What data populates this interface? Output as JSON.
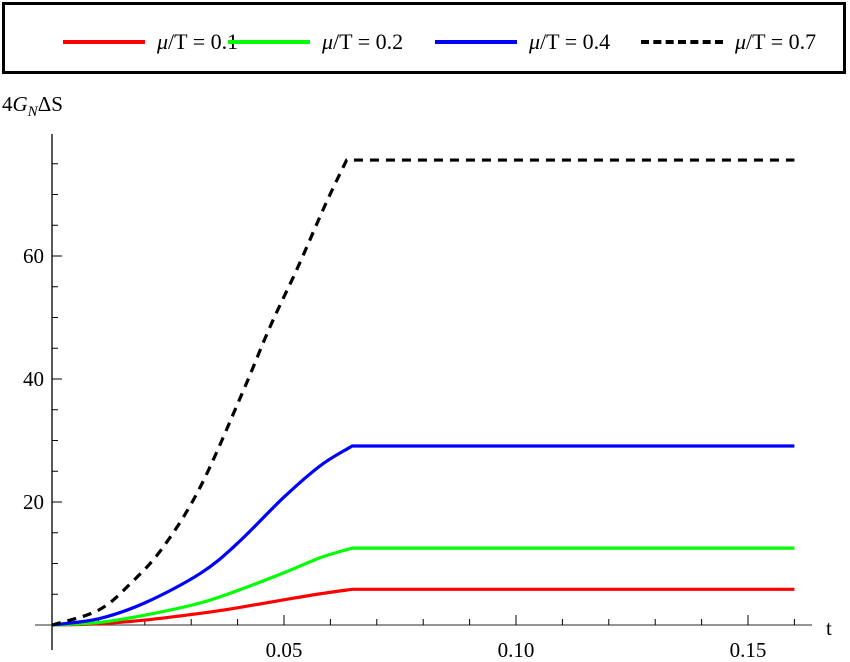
{
  "legend": {
    "items": [
      {
        "mu": "μ",
        "label": "/T = 0.1",
        "color": "#ff0000",
        "dash": "solid"
      },
      {
        "mu": "μ",
        "label": "/T = 0.2",
        "color": "#00ff00",
        "dash": "solid"
      },
      {
        "mu": "μ",
        "label": "/T = 0.4",
        "color": "#0000ff",
        "dash": "solid"
      },
      {
        "mu": "μ",
        "label": "/T = 0.7",
        "color": "#000000",
        "dash": "dashed"
      }
    ]
  },
  "axes": {
    "ylabel_main": "4",
    "ylabel_G": "G",
    "ylabel_sub": "N",
    "ylabel_tail": "ΔS",
    "xlabel": "t",
    "xticks": [
      "0.05",
      "0.10",
      "0.15"
    ],
    "yticks": [
      "20",
      "40",
      "60"
    ]
  },
  "chart_data": {
    "type": "line",
    "title": "",
    "xlabel": "t",
    "ylabel": "4G_N ΔS",
    "xlim": [
      0,
      0.162
    ],
    "ylim": [
      -4,
      82
    ],
    "xticks": [
      0.05,
      0.1,
      0.15
    ],
    "yticks": [
      20,
      40,
      60
    ],
    "grid": false,
    "legend_position": "top (boxed, outside plot)",
    "series": [
      {
        "name": "μ/T = 0.1",
        "color": "#ff0000",
        "style": "solid",
        "x": [
          0,
          0.01,
          0.02,
          0.032,
          0.04,
          0.05,
          0.058,
          0.0647,
          0.08,
          0.1,
          0.12,
          0.14,
          0.16
        ],
        "y": [
          0,
          0.2,
          0.8,
          1.9,
          2.8,
          4.1,
          5.1,
          5.8,
          5.8,
          5.8,
          5.8,
          5.8,
          5.8
        ]
      },
      {
        "name": "μ/T = 0.2",
        "color": "#00ff00",
        "style": "solid",
        "x": [
          0,
          0.01,
          0.02,
          0.032,
          0.04,
          0.05,
          0.058,
          0.0647,
          0.08,
          0.1,
          0.12,
          0.14,
          0.16
        ],
        "y": [
          0,
          0.4,
          1.6,
          3.6,
          5.6,
          8.5,
          11.0,
          12.5,
          12.5,
          12.5,
          12.5,
          12.5,
          12.5
        ]
      },
      {
        "name": "μ/T = 0.4",
        "color": "#0000ff",
        "style": "solid",
        "x": [
          0,
          0.01,
          0.02,
          0.032,
          0.04,
          0.05,
          0.058,
          0.0647,
          0.08,
          0.1,
          0.12,
          0.14,
          0.16
        ],
        "y": [
          0,
          1.0,
          3.6,
          8.4,
          13.3,
          20.8,
          26.0,
          29.1,
          29.1,
          29.1,
          29.1,
          29.1,
          29.1
        ]
      },
      {
        "name": "μ/T = 0.7",
        "color": "#000000",
        "style": "dashed",
        "x": [
          0,
          0.01,
          0.017,
          0.024,
          0.032,
          0.041,
          0.047,
          0.053,
          0.059,
          0.0635,
          0.08,
          0.1,
          0.12,
          0.14,
          0.16
        ],
        "y": [
          0,
          2.4,
          6.8,
          12.7,
          22.5,
          37.7,
          48.5,
          58.2,
          68.5,
          75.6,
          75.6,
          75.6,
          75.6,
          75.6,
          75.6
        ]
      }
    ]
  }
}
